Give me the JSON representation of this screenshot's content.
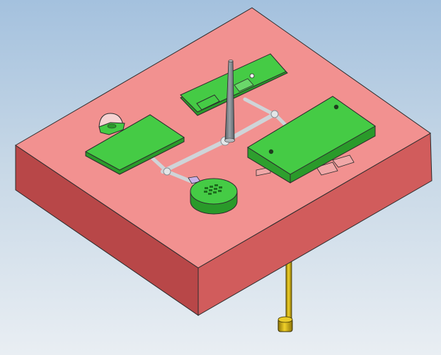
{
  "viewport": {
    "background_top": "#a4c1de",
    "background_bottom": "#e9eef3"
  },
  "colors": {
    "mold_top": "#f29190",
    "mold_front": "#b84748",
    "mold_right": "#d15c5c",
    "part_top": "#45cb45",
    "part_side": "#2a9a2a",
    "runner": "#cfd4d8",
    "sprue": "#7d8389",
    "ejector_pin": "#c9a60a",
    "edge": "#2d2d2d"
  }
}
